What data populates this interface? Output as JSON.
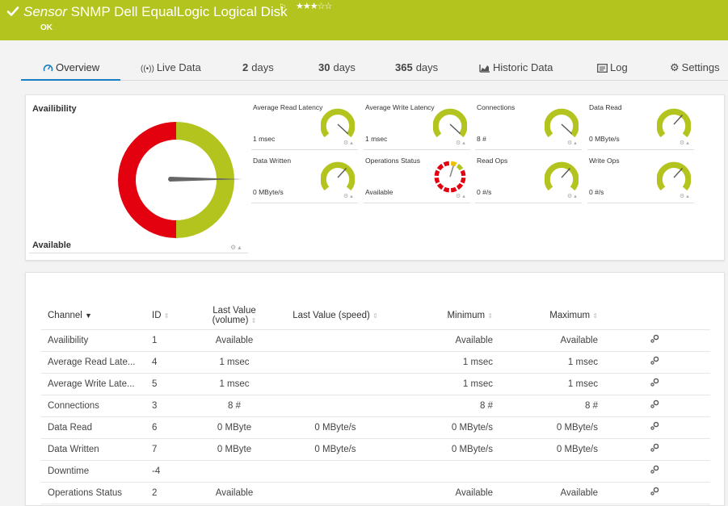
{
  "header": {
    "title_prefix": "Sensor",
    "title": "SNMP Dell EqualLogic Logical Disk",
    "flag_icon": "flag-icon",
    "stars": "★★★☆☆",
    "status": "OK",
    "bg_color": "#b4c41f"
  },
  "tabs": [
    {
      "label": "Overview",
      "icon": "gauge-icon"
    },
    {
      "label": "Live Data",
      "icon": "live-icon"
    },
    {
      "num": "2",
      "label": "days"
    },
    {
      "num": "30",
      "label": "days"
    },
    {
      "num": "365",
      "label": "days"
    },
    {
      "label": "Historic Data",
      "icon": "chart-icon"
    },
    {
      "label": "Log",
      "icon": "log-icon"
    },
    {
      "label": "Settings",
      "icon": "gear-icon"
    }
  ],
  "availability": {
    "label": "Availibility",
    "value": "Available",
    "good_color": "#b4c41f",
    "bad_color": "#e3000f"
  },
  "gauges": [
    {
      "name": "Average Read Latency",
      "value": "1 msec"
    },
    {
      "name": "Average Write Latency",
      "value": "1 msec"
    },
    {
      "name": "Connections",
      "value": "8 #"
    },
    {
      "name": "Data Read",
      "value": "0 MByte/s"
    },
    {
      "name": "Data Written",
      "value": "0 MByte/s"
    },
    {
      "name": "Operations Status",
      "value": "Available"
    },
    {
      "name": "Read Ops",
      "value": "0 #/s"
    },
    {
      "name": "Write Ops",
      "value": "0 #/s"
    }
  ],
  "table": {
    "headers": {
      "channel": "Channel",
      "id": "ID",
      "last_value_1": "Last Value",
      "last_value_2": "(volume)",
      "last_value_speed": "Last Value (speed)",
      "minimum": "Minimum",
      "maximum": "Maximum"
    },
    "rows": [
      {
        "channel": "Availibility",
        "id": "1",
        "lv": "Available",
        "lvs": "",
        "min": "Available",
        "max": "Available"
      },
      {
        "channel": "Average Read Late...",
        "id": "4",
        "lv": "1 msec",
        "lvs": "",
        "min": "1 msec",
        "max": "1 msec"
      },
      {
        "channel": "Average Write Late...",
        "id": "5",
        "lv": "1 msec",
        "lvs": "",
        "min": "1 msec",
        "max": "1 msec"
      },
      {
        "channel": "Connections",
        "id": "3",
        "lv": "8 #",
        "lvs": "",
        "min": "8 #",
        "max": "8 #"
      },
      {
        "channel": "Data Read",
        "id": "6",
        "lv": "0 MByte",
        "lvs": "0 MByte/s",
        "min": "0 MByte/s",
        "max": "0 MByte/s"
      },
      {
        "channel": "Data Written",
        "id": "7",
        "lv": "0 MByte",
        "lvs": "0 MByte/s",
        "min": "0 MByte/s",
        "max": "0 MByte/s"
      },
      {
        "channel": "Downtime",
        "id": "-4",
        "lv": "",
        "lvs": "",
        "min": "",
        "max": ""
      },
      {
        "channel": "Operations Status",
        "id": "2",
        "lv": "Available",
        "lvs": "",
        "min": "Available",
        "max": "Available"
      }
    ]
  }
}
